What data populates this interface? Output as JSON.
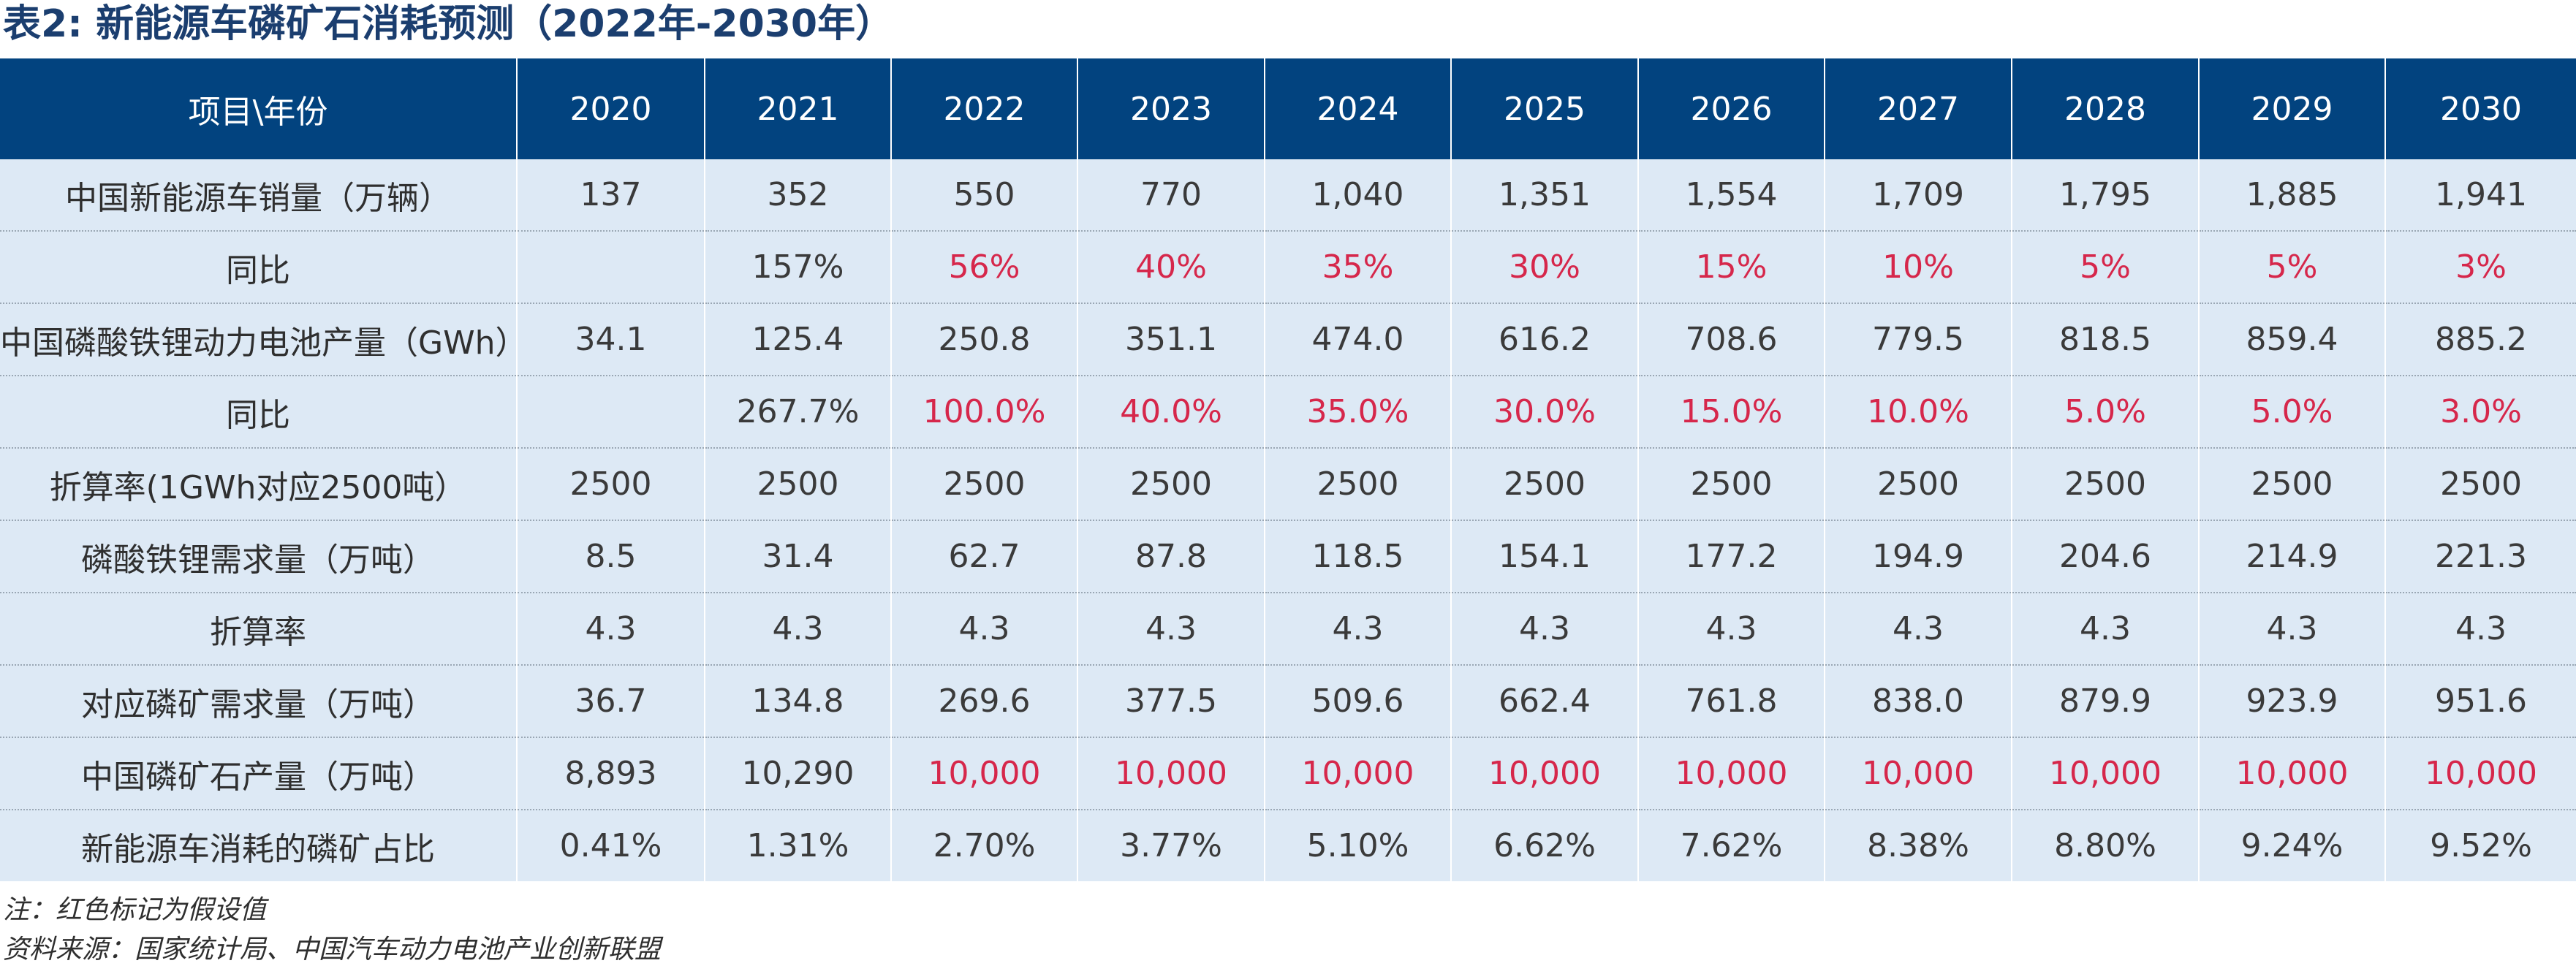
{
  "title": "表2: 新能源车磷矿石消耗预测（2022年-2030年）",
  "header": {
    "label": "项目\\年份",
    "years": [
      "2020",
      "2021",
      "2022",
      "2023",
      "2024",
      "2025",
      "2026",
      "2027",
      "2028",
      "2029",
      "2030"
    ]
  },
  "rows": [
    {
      "label": "中国新能源车销量（万辆）",
      "values": [
        "137",
        "352",
        "550",
        "770",
        "1,040",
        "1,351",
        "1,554",
        "1,709",
        "1,795",
        "1,885",
        "1,941"
      ],
      "estimated_from": 11
    },
    {
      "label": "同比",
      "values": [
        "",
        "157%",
        "56%",
        "40%",
        "35%",
        "30%",
        "15%",
        "10%",
        "5%",
        "5%",
        "3%"
      ],
      "estimated_from": 2
    },
    {
      "label": "中国磷酸铁锂动力电池产量（GWh）",
      "values": [
        "34.1",
        "125.4",
        "250.8",
        "351.1",
        "474.0",
        "616.2",
        "708.6",
        "779.5",
        "818.5",
        "859.4",
        "885.2"
      ],
      "estimated_from": 11
    },
    {
      "label": "同比",
      "values": [
        "",
        "267.7%",
        "100.0%",
        "40.0%",
        "35.0%",
        "30.0%",
        "15.0%",
        "10.0%",
        "5.0%",
        "5.0%",
        "3.0%"
      ],
      "estimated_from": 2
    },
    {
      "label": "折算率(1GWh对应2500吨）",
      "values": [
        "2500",
        "2500",
        "2500",
        "2500",
        "2500",
        "2500",
        "2500",
        "2500",
        "2500",
        "2500",
        "2500"
      ],
      "estimated_from": 11
    },
    {
      "label": "磷酸铁锂需求量（万吨）",
      "values": [
        "8.5",
        "31.4",
        "62.7",
        "87.8",
        "118.5",
        "154.1",
        "177.2",
        "194.9",
        "204.6",
        "214.9",
        "221.3"
      ],
      "estimated_from": 11
    },
    {
      "label": "折算率",
      "values": [
        "4.3",
        "4.3",
        "4.3",
        "4.3",
        "4.3",
        "4.3",
        "4.3",
        "4.3",
        "4.3",
        "4.3",
        "4.3"
      ],
      "estimated_from": 11
    },
    {
      "label": "对应磷矿需求量（万吨）",
      "values": [
        "36.7",
        "134.8",
        "269.6",
        "377.5",
        "509.6",
        "662.4",
        "761.8",
        "838.0",
        "879.9",
        "923.9",
        "951.6"
      ],
      "estimated_from": 11
    },
    {
      "label": "中国磷矿石产量（万吨）",
      "values": [
        "8,893",
        "10,290",
        "10,000",
        "10,000",
        "10,000",
        "10,000",
        "10,000",
        "10,000",
        "10,000",
        "10,000",
        "10,000"
      ],
      "estimated_from": 2
    },
    {
      "label": "新能源车消耗的磷矿占比",
      "values": [
        "0.41%",
        "1.31%",
        "2.70%",
        "3.77%",
        "5.10%",
        "6.62%",
        "7.62%",
        "8.38%",
        "8.80%",
        "9.24%",
        "9.52%"
      ],
      "estimated_from": 11
    }
  ],
  "notes": {
    "note": "注：红色标记为假设值",
    "source": "资料来源：国家统计局、中国汽车动力电池产业创新联盟"
  },
  "colors": {
    "header_bg": "#02437f",
    "row_bg": "#dde9f5",
    "estimate_text": "#d6274b",
    "title_text": "#1b3e6f"
  }
}
